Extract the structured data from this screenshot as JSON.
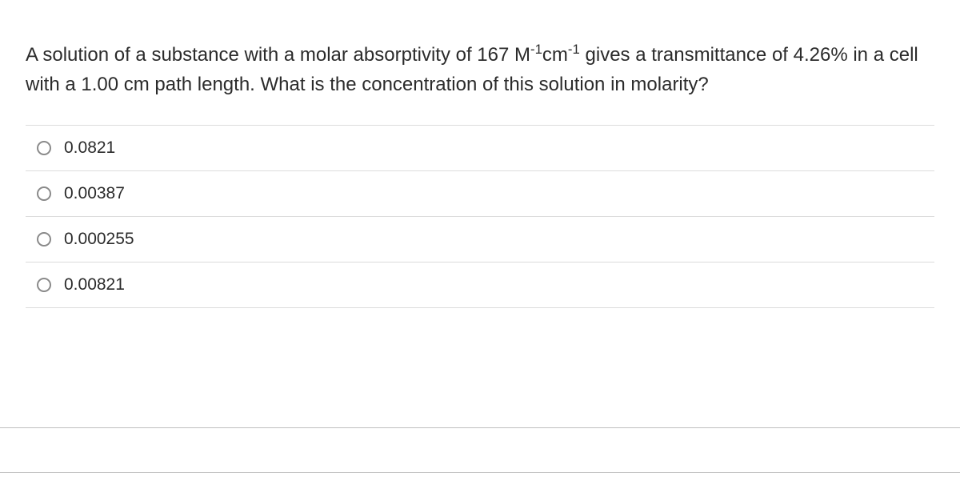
{
  "question": {
    "pre": "A solution of a substance with a molar absorptivity of 167 M",
    "sup1": "-1",
    "mid1": "cm",
    "sup2": "-1",
    "post": " gives a transmittance of 4.26% in a cell with a 1.00 cm path length. What is the concentration of this solution in molarity?"
  },
  "options": [
    {
      "label": "0.0821"
    },
    {
      "label": "0.00387"
    },
    {
      "label": "0.000255"
    },
    {
      "label": "0.00821"
    }
  ]
}
